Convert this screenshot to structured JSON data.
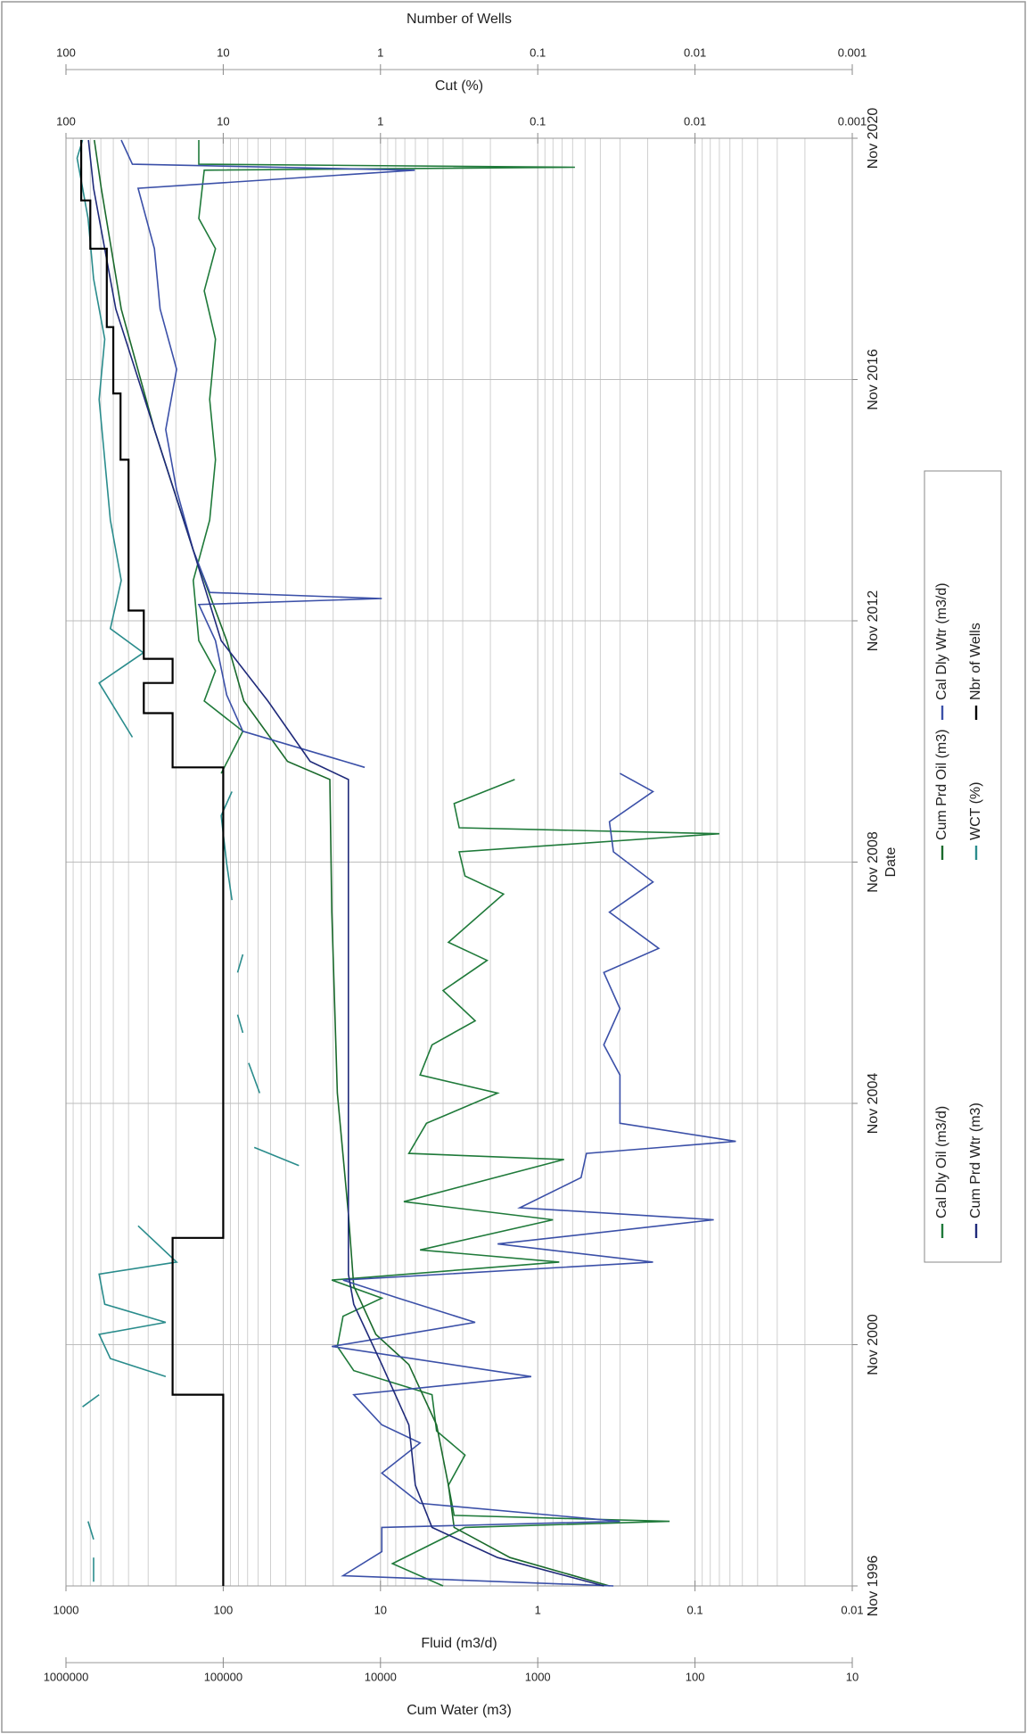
{
  "chart_data": {
    "type": "line",
    "x_label": "Date",
    "y_label": "Fluid (m3/d)",
    "y2_label": "Cum Water (m3)",
    "y3_label": "Cut (%)",
    "y4_label": "Number of Wells",
    "log_scale": true,
    "grid": true,
    "minor_grid": true,
    "legend": "bottom",
    "xlim": [
      1996.83,
      2020.83
    ],
    "xticks": [
      {
        "value": 1996.83,
        "label": "Nov 1996"
      },
      {
        "value": 2000.83,
        "label": "Nov 2000"
      },
      {
        "value": 2004.83,
        "label": "Nov 2004"
      },
      {
        "value": 2008.83,
        "label": "Nov 2008"
      },
      {
        "value": 2012.83,
        "label": "Nov 2012"
      },
      {
        "value": 2016.83,
        "label": "Nov 2016"
      },
      {
        "value": 2020.83,
        "label": "Nov 2020"
      }
    ],
    "ylim": [
      0.01,
      1000
    ],
    "yticks": [
      0.01,
      0.1,
      1,
      10,
      100,
      1000
    ],
    "y2lim": [
      10,
      1000000
    ],
    "y2ticks": [
      10,
      100,
      1000,
      10000,
      100000,
      1000000
    ],
    "y3lim": [
      0.001,
      100
    ],
    "y3ticks": [
      0.001,
      0.01,
      0.1,
      1,
      10,
      100
    ],
    "y4lim": [
      0.001,
      100
    ],
    "y4ticks": [
      0.001,
      0.01,
      0.1,
      1,
      10,
      100
    ],
    "series": [
      {
        "name": "Cal Dly Oil (m3/d)",
        "color": "#1f7a3a",
        "axis": "y",
        "x": [
          1996.83,
          1997.2,
          1997.8,
          1997.9,
          1998.0,
          1998.5,
          1999.0,
          1999.4,
          2000.0,
          2000.4,
          2000.8,
          2001.3,
          2001.6,
          2001.9,
          2002.2,
          2002.4,
          2002.9,
          2003.2,
          2003.9,
          2004.0,
          2004.5,
          2005.0,
          2005.3,
          2005.8,
          2006.2,
          2006.7,
          2007.2,
          2007.5,
          2008.3,
          2008.6,
          2009.0,
          2009.3,
          2009.4,
          2009.8,
          2010.2,
          2010.25,
          2010.3,
          2011.0,
          2011.5,
          2012.0,
          2012.5,
          2013.5,
          2014.5,
          2015.5,
          2016.5,
          2017.5,
          2018.3,
          2019.0,
          2019.5,
          2020.3,
          2020.35,
          2020.4,
          2020.8
        ],
        "values": [
          4.0,
          8.4,
          2.9,
          0.145,
          3.4,
          3.7,
          2.9,
          4.4,
          4.7,
          14.8,
          18.8,
          17.3,
          9.8,
          20.4,
          0.73,
          5.6,
          0.8,
          7.1,
          0.68,
          6.6,
          5.1,
          1.8,
          5.6,
          4.7,
          2.5,
          4.0,
          2.1,
          3.7,
          1.65,
          2.9,
          3.16,
          0.07,
          3.16,
          3.4,
          1.4,
          null,
          103,
          75,
          132,
          112,
          143,
          155,
          122,
          112,
          122,
          112,
          132,
          112,
          143,
          132,
          0.58,
          143,
          143
        ]
      },
      {
        "name": "Cum Prd Oil (m3)",
        "color": "#1a6a2c",
        "axis": "y2",
        "x": [
          1996.83,
          1997.3,
          1997.8,
          1998.5,
          1999.5,
          2000.5,
          2001.0,
          2001.8,
          2003.0,
          2005.0,
          2008.0,
          2010.2,
          2010.5,
          2011.5,
          2012.5,
          2014.0,
          2016.0,
          2018.0,
          2020.0,
          2020.8
        ],
        "values": [
          350,
          1500,
          3400,
          3700,
          4400,
          6600,
          10700,
          14800,
          16000,
          18800,
          20400,
          21000,
          39000,
          74000,
          95000,
          155000,
          274000,
          445000,
          596000,
          660000
        ]
      },
      {
        "name": "Cal Dly Wtr (m3/d)",
        "color": "#3b50a8",
        "axis": "y",
        "x": [
          1996.83,
          1997.0,
          1997.4,
          1997.8,
          1997.9,
          1998.2,
          1998.7,
          1999.2,
          1999.5,
          2000.0,
          2000.3,
          2000.8,
          2001.2,
          2001.6,
          2001.9,
          2002.2,
          2002.5,
          2002.9,
          2003.1,
          2003.6,
          2004.0,
          2004.2,
          2004.5,
          2005.3,
          2005.8,
          2006.4,
          2007.0,
          2007.4,
          2008.0,
          2008.5,
          2009.0,
          2009.5,
          2010.0,
          2010.3,
          2010.35,
          2010.4,
          2011.0,
          2011.6,
          2012.5,
          2013.1,
          2013.2,
          2013.3,
          2014.0,
          2015.0,
          2016.0,
          2017.0,
          2018.0,
          2019.0,
          2020.0,
          2020.3,
          2020.4,
          2020.8
        ],
        "values": [
          0.33,
          17.3,
          9.8,
          9.8,
          0.3,
          5.6,
          9.8,
          5.6,
          9.8,
          14.8,
          1.1,
          20.4,
          2.5,
          7.7,
          17.3,
          0.185,
          1.8,
          0.076,
          1.3,
          0.53,
          0.49,
          0.055,
          0.3,
          0.3,
          0.38,
          0.3,
          0.38,
          0.17,
          0.35,
          0.185,
          0.33,
          0.35,
          0.185,
          0.3,
          null,
          12.6,
          75,
          95,
          112,
          143,
          9.8,
          122,
          155,
          198,
          232,
          198,
          252,
          274,
          348,
          6.05,
          378,
          445
        ]
      },
      {
        "name": "Cum Prd Wtr (m3)",
        "color": "#1f2a7a",
        "axis": "y2",
        "x": [
          1996.83,
          1997.3,
          1997.8,
          1998.5,
          1999.5,
          2000.5,
          2001.5,
          2002.0,
          2004.0,
          2008.0,
          2010.2,
          2010.5,
          2011.5,
          2012.5,
          2014.0,
          2016.0,
          2018.0,
          2020.0,
          2020.8
        ],
        "values": [
          380,
          1800,
          4700,
          6000,
          6600,
          9800,
          14800,
          16000,
          16000,
          16000,
          16000,
          28000,
          52000,
          103000,
          155000,
          274000,
          482000,
          667000,
          720000
        ]
      },
      {
        "name": "WCT (%)",
        "color": "#2a8c8c",
        "axis": "y3",
        "x": [
          1996.9,
          1997.3,
          1997.45,
          1997.6,
          1997.9,
          1998.8,
          1999.8,
          2000.0,
          2000.15,
          2000.3,
          2000.6,
          2001.0,
          2001.2,
          2001.5,
          2002.0,
          2002.2,
          2002.8,
          2003.3,
          2003.8,
          2004.1,
          2004.5,
          2005.0,
          2005.5,
          2005.75,
          2006.0,
          2006.3,
          2006.6,
          2007.0,
          2007.3,
          2007.7,
          2008.2,
          2008.8,
          2009.6,
          2010.0,
          2010.5,
          2010.9,
          2011.8,
          2012.3,
          2012.7,
          2013.5,
          2014.5,
          2015.5,
          2016.5,
          2017.5,
          2018.5,
          2019.5,
          2020.5,
          2020.8
        ],
        "values": [
          66.7,
          66.7,
          null,
          66.7,
          72.3,
          null,
          78.4,
          61.5,
          null,
          23.2,
          52.2,
          61.5,
          23.2,
          56.7,
          61.5,
          19.8,
          34.8,
          null,
          3.3,
          6.35,
          null,
          5.86,
          6.89,
          null,
          7.5,
          8.1,
          null,
          8.1,
          7.5,
          null,
          8.8,
          9.5,
          10.3,
          8.8,
          null,
          37.8,
          61.5,
          32.2,
          52.2,
          44.5,
          52.2,
          56.7,
          61.5,
          56.7,
          66.7,
          72.3,
          85.0,
          78.4
        ]
      },
      {
        "name": "Nbr of Wells",
        "color": "#000000",
        "axis": "y4",
        "x": [
          1996.83,
          2000.0,
          2000.0,
          2002.6,
          2002.6,
          2010.4,
          2010.4,
          2011.3,
          2011.3,
          2011.8,
          2011.8,
          2012.2,
          2012.2,
          2013.0,
          2013.0,
          2015.5,
          2015.5,
          2016.6,
          2016.6,
          2017.7,
          2017.7,
          2019.0,
          2019.0,
          2019.8,
          2019.8,
          2020.8
        ],
        "values": [
          10,
          10,
          21,
          21,
          10,
          10,
          21,
          21,
          32,
          32,
          21,
          21,
          32,
          32,
          40,
          40,
          45,
          45,
          50,
          50,
          55,
          55,
          70,
          70,
          80,
          80
        ]
      }
    ]
  }
}
